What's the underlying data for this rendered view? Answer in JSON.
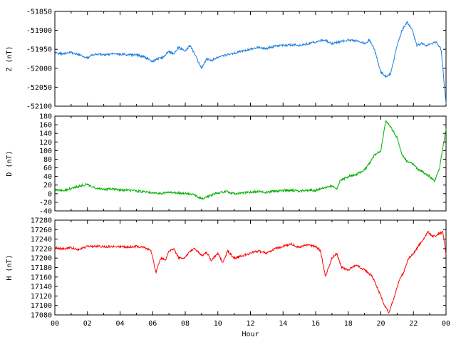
{
  "chart_data": [
    {
      "type": "line",
      "panel": "Z",
      "ylabel": "Z (nT)",
      "color": "#1f7fe0",
      "ylim": [
        -52100,
        -51850
      ],
      "yticks": [
        -51850,
        -51900,
        -51950,
        -52000,
        -52050,
        -52100
      ],
      "xlim": [
        0,
        24
      ],
      "x": [
        0,
        0.5,
        1,
        1.5,
        2,
        2.5,
        3,
        3.5,
        4,
        4.5,
        5,
        5.5,
        6,
        6.3,
        6.6,
        7,
        7.3,
        7.6,
        8,
        8.3,
        8.6,
        9,
        9.3,
        9.6,
        10,
        10.5,
        11,
        11.5,
        12,
        12.5,
        13,
        13.5,
        14,
        14.5,
        15,
        15.5,
        16,
        16.5,
        17,
        17.5,
        18,
        18.5,
        19,
        19.3,
        19.6,
        20,
        20.3,
        20.6,
        21,
        21.3,
        21.6,
        21.9,
        22.2,
        22.5,
        22.8,
        23.1,
        23.4,
        23.7,
        24
      ],
      "values": [
        -51960,
        -51962,
        -51958,
        -51965,
        -51972,
        -51962,
        -51965,
        -51963,
        -51963,
        -51964,
        -51965,
        -51970,
        -51982,
        -51975,
        -51972,
        -51955,
        -51963,
        -51945,
        -51955,
        -51940,
        -51965,
        -52000,
        -51975,
        -51980,
        -51970,
        -51965,
        -51960,
        -51955,
        -51950,
        -51945,
        -51948,
        -51942,
        -51940,
        -51938,
        -51940,
        -51935,
        -51930,
        -51925,
        -51935,
        -51930,
        -51925,
        -51928,
        -51935,
        -51925,
        -51950,
        -52010,
        -52022,
        -52015,
        -51940,
        -51900,
        -51878,
        -51895,
        -51940,
        -51935,
        -51940,
        -51935,
        -51930,
        -51950,
        -52095
      ]
    },
    {
      "type": "line",
      "panel": "D",
      "ylabel": "D (nT)",
      "color": "#00b000",
      "ylim": [
        -40,
        180
      ],
      "yticks": [
        180,
        160,
        140,
        120,
        100,
        80,
        60,
        40,
        20,
        0,
        -20,
        -40
      ],
      "xlim": [
        0,
        24
      ],
      "x": [
        0,
        0.5,
        1,
        1.5,
        2,
        2.5,
        3,
        3.5,
        4,
        4.5,
        5,
        5.5,
        6,
        6.5,
        7,
        7.5,
        8,
        8.5,
        9,
        9.5,
        10,
        10.5,
        11,
        11.5,
        12,
        12.5,
        13,
        13.5,
        14,
        14.5,
        15,
        15.5,
        16,
        16.5,
        17,
        17.3,
        17.5,
        18,
        18.5,
        19,
        19.3,
        19.6,
        20,
        20.3,
        20.6,
        21,
        21.3,
        21.6,
        22,
        22.3,
        22.6,
        23,
        23.3,
        23.6,
        24
      ],
      "values": [
        10,
        8,
        12,
        18,
        22,
        12,
        10,
        11,
        8,
        8,
        6,
        4,
        2,
        0,
        4,
        2,
        0,
        -2,
        -12,
        -5,
        2,
        5,
        0,
        2,
        4,
        5,
        3,
        6,
        8,
        8,
        6,
        8,
        8,
        14,
        18,
        10,
        30,
        40,
        45,
        55,
        70,
        90,
        100,
        170,
        155,
        130,
        90,
        75,
        70,
        55,
        50,
        40,
        30,
        60,
        150
      ]
    },
    {
      "type": "line",
      "panel": "H",
      "ylabel": "H (nT)",
      "color": "#ff0000",
      "ylim": [
        17080,
        17280
      ],
      "yticks": [
        17280,
        17260,
        17240,
        17220,
        17200,
        17180,
        17160,
        17140,
        17120,
        17100,
        17080
      ],
      "xlim": [
        0,
        24
      ],
      "xlabel": "Hour",
      "xtick_labels": [
        "00",
        "02",
        "04",
        "06",
        "08",
        "10",
        "12",
        "14",
        "16",
        "18",
        "20",
        "22",
        "00"
      ],
      "x": [
        0,
        0.5,
        1,
        1.5,
        2,
        2.5,
        3,
        3.5,
        4,
        4.5,
        5,
        5.5,
        5.9,
        6.2,
        6.5,
        6.8,
        7,
        7.3,
        7.6,
        8,
        8.3,
        8.6,
        9,
        9.3,
        9.6,
        10,
        10.3,
        10.6,
        11,
        11.5,
        12,
        12.5,
        13,
        13.5,
        14,
        14.5,
        15,
        15.5,
        16,
        16.3,
        16.6,
        17,
        17.3,
        17.6,
        18,
        18.5,
        19,
        19.5,
        20,
        20.3,
        20.5,
        20.8,
        21.1,
        21.4,
        21.7,
        22,
        22.3,
        22.6,
        22.9,
        23.2,
        23.5,
        23.8,
        24
      ],
      "values": [
        17222,
        17220,
        17222,
        17218,
        17225,
        17225,
        17224,
        17225,
        17224,
        17223,
        17225,
        17222,
        17215,
        17170,
        17200,
        17195,
        17215,
        17220,
        17200,
        17200,
        17215,
        17220,
        17205,
        17212,
        17195,
        17210,
        17190,
        17215,
        17200,
        17205,
        17210,
        17215,
        17210,
        17220,
        17225,
        17230,
        17222,
        17228,
        17225,
        17215,
        17160,
        17200,
        17210,
        17180,
        17175,
        17185,
        17175,
        17160,
        17120,
        17095,
        17085,
        17115,
        17150,
        17170,
        17200,
        17210,
        17225,
        17240,
        17255,
        17245,
        17250,
        17255,
        17210
      ]
    }
  ]
}
